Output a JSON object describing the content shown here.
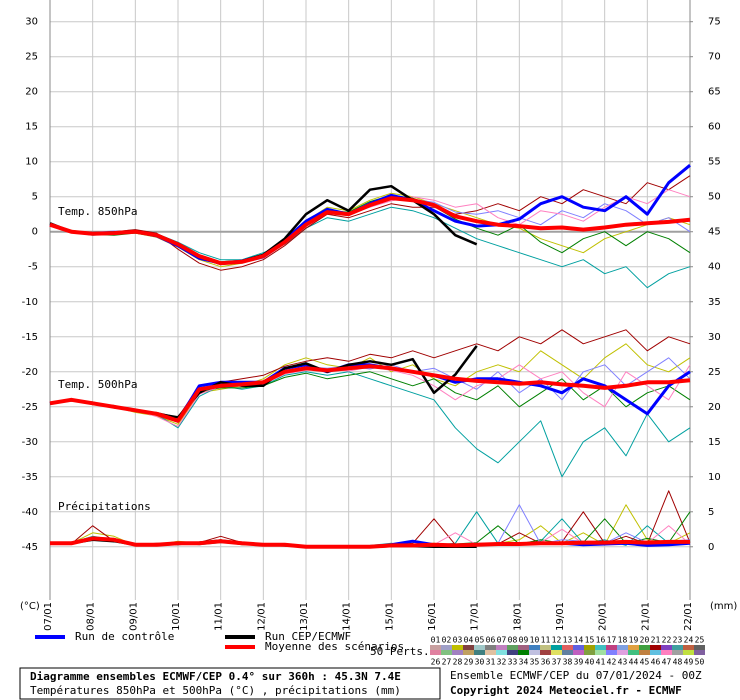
{
  "chart_data": {
    "type": "line",
    "panel_labels": [
      "Temp. 850hPa",
      "Temp. 500hPa",
      "Précipitations"
    ],
    "ylabel": "(°C)",
    "y2label": "(mm)",
    "x": [
      0,
      0.5,
      1,
      1.5,
      2,
      2.5,
      3,
      3.5,
      4,
      4.5,
      5,
      5.5,
      6,
      6.5,
      7,
      7.5,
      8,
      8.5,
      9,
      9.5,
      10,
      10.5,
      11,
      11.5,
      12,
      12.5,
      13,
      13.5,
      14,
      14.5,
      15
    ],
    "xlim": [
      0,
      15
    ],
    "xticks": [
      {
        "value": 0,
        "label": "07/01"
      },
      {
        "value": 1,
        "label": "08/01"
      },
      {
        "value": 2,
        "label": "09/01"
      },
      {
        "value": 3,
        "label": "10/01"
      },
      {
        "value": 4,
        "label": "11/01"
      },
      {
        "value": 5,
        "label": "12/01"
      },
      {
        "value": 6,
        "label": "13/01"
      },
      {
        "value": 7,
        "label": "14/01"
      },
      {
        "value": 8,
        "label": "15/01"
      },
      {
        "value": 9,
        "label": "16/01"
      },
      {
        "value": 10,
        "label": "17/01"
      },
      {
        "value": 11,
        "label": "18/01"
      },
      {
        "value": 12,
        "label": "19/01"
      },
      {
        "value": 13,
        "label": "20/01"
      },
      {
        "value": 14,
        "label": "21/01"
      },
      {
        "value": 15,
        "label": "22/01"
      }
    ],
    "ylim": [
      -52.6,
      33.1
    ],
    "yticks": [
      -45,
      -40,
      -35,
      -30,
      -25,
      -20,
      -15,
      -10,
      -5,
      0,
      5,
      10,
      15,
      20,
      25,
      30
    ],
    "y2lim": [
      -7.6,
      78.1
    ],
    "y2ticks": [
      0,
      5,
      10,
      15,
      20,
      25,
      30,
      35,
      40,
      45,
      50,
      55,
      60,
      65,
      70,
      75
    ],
    "grid": true,
    "perturbations": {
      "label": "50 Perts.",
      "names": [
        "01",
        "02",
        "03",
        "04",
        "05",
        "06",
        "07",
        "08",
        "09",
        "10",
        "11",
        "12",
        "13",
        "14",
        "15",
        "16",
        "17",
        "18",
        "19",
        "20",
        "21",
        "22",
        "23",
        "24",
        "25",
        "26",
        "27",
        "28",
        "29",
        "30",
        "31",
        "32",
        "33",
        "34",
        "35",
        "36",
        "37",
        "38",
        "39",
        "40",
        "41",
        "42",
        "43",
        "44",
        "45",
        "46",
        "47",
        "48",
        "49",
        "50"
      ],
      "colors": [
        "#c8a0a0",
        "#a0a0c8",
        "#c0c000",
        "#804040",
        "#a0c8c8",
        "#808080",
        "#c080c0",
        "#60a060",
        "#a06080",
        "#4080c0",
        "#c0c080",
        "#00a0a0",
        "#e06060",
        "#6060e0",
        "#a0a000",
        "#40c0c0",
        "#c04080",
        "#80a0e0",
        "#e0a040",
        "#40a040",
        "#a00000",
        "#8040c0",
        "#40a0a0",
        "#c06040",
        "#606060",
        "#e080a0",
        "#80c080",
        "#a080c0",
        "#c0a060",
        "#408080",
        "#e0c0a0",
        "#80e0e0",
        "#404080",
        "#008000",
        "#c0c0e0",
        "#a04040",
        "#e0e060",
        "#6080a0",
        "#c060c0",
        "#80a040",
        "#a0e0a0",
        "#8080ff",
        "#e0a0e0",
        "#40c080",
        "#c08040",
        "#60c0e0",
        "#ff80c0",
        "#a0a0a0",
        "#c0e040",
        "#8060a0"
      ]
    },
    "series": [
      {
        "name": "03",
        "color": "#c0c000",
        "values": [
          1,
          0.2,
          -0.2,
          0,
          -0.2,
          -0.8,
          -2.2,
          -4,
          -5,
          -4.5,
          -3.5,
          -1,
          1.5,
          3.5,
          3,
          4.5,
          5.5,
          5,
          4,
          3,
          2,
          1,
          0.5,
          -1,
          -2,
          -3,
          -1,
          0,
          1,
          2,
          1
        ]
      },
      {
        "name": "12",
        "color": "#00a0a0",
        "values": [
          1,
          -0.1,
          -0.5,
          -0.3,
          0.2,
          -0.3,
          -1.5,
          -3,
          -4,
          -4,
          -3,
          -1.8,
          0.5,
          2,
          1.5,
          2.5,
          3.5,
          3,
          2,
          0.5,
          -1,
          -2,
          -3,
          -4,
          -5,
          -4,
          -6,
          -5,
          -8,
          -6,
          -5
        ]
      },
      {
        "name": "21",
        "color": "#a00000",
        "values": [
          1,
          0,
          -0.2,
          0,
          0.3,
          -0.2,
          -2.5,
          -4.5,
          -5.5,
          -5,
          -4,
          -2,
          0.5,
          2.5,
          2,
          3,
          4,
          3.5,
          3.5,
          2.5,
          3,
          4,
          3,
          5,
          4,
          6,
          5,
          4,
          7,
          6,
          8
        ]
      },
      {
        "name": "34",
        "color": "#008000",
        "values": [
          1,
          0.1,
          -0.4,
          -0.5,
          -0.2,
          -0.7,
          -1.8,
          -3.3,
          -4.3,
          -4.1,
          -3.2,
          -1.3,
          1.2,
          3,
          2.8,
          4.3,
          5.2,
          4.8,
          3.6,
          1.8,
          0.5,
          -0.5,
          1,
          -1.5,
          -3,
          -1,
          0,
          -2,
          0,
          -1,
          -3
        ]
      },
      {
        "name": "42",
        "color": "#8080ff",
        "values": [
          1,
          0,
          -0.1,
          0.1,
          0,
          -0.4,
          -1.6,
          -3.4,
          -4.4,
          -4.4,
          -3.8,
          -1.7,
          0.8,
          2.6,
          2.7,
          4,
          5,
          4.6,
          4.2,
          2.8,
          2.5,
          3,
          2,
          1,
          3,
          2,
          4,
          3,
          1,
          2,
          0
        ]
      },
      {
        "name": "47",
        "color": "#ff80c0",
        "values": [
          1,
          0,
          -0.3,
          -0.1,
          -0.1,
          -0.6,
          -1.9,
          -3.7,
          -4.7,
          -4.3,
          -3.6,
          -1.4,
          1,
          3.1,
          2.4,
          3.5,
          4.4,
          5,
          4.5,
          3.5,
          4,
          2,
          1,
          3,
          2.5,
          1.5,
          3.5,
          5,
          4,
          6,
          5
        ]
      },
      {
        "name": "03",
        "color": "#c0c000",
        "values": [
          -24.5,
          -24,
          -24.7,
          -25,
          -25.8,
          -26.3,
          -27.5,
          -23,
          -22.5,
          -22,
          -21,
          -19,
          -18,
          -19,
          -19.5,
          -18,
          -20,
          -19,
          -21,
          -22,
          -20,
          -19,
          -20,
          -17,
          -19,
          -21,
          -18,
          -16,
          -19,
          -20,
          -18
        ]
      },
      {
        "name": "12",
        "color": "#00a0a0",
        "values": [
          -24.5,
          -24.2,
          -24.4,
          -25.2,
          -25.3,
          -26.1,
          -28,
          -23.5,
          -22,
          -22.5,
          -22,
          -20.5,
          -20,
          -20.5,
          -20,
          -21,
          -22,
          -23,
          -24,
          -28,
          -31,
          -33,
          -30,
          -27,
          -35,
          -30,
          -28,
          -32,
          -26,
          -30,
          -28
        ]
      },
      {
        "name": "21",
        "color": "#a00000",
        "values": [
          -24.5,
          -24,
          -24.6,
          -24.8,
          -25.6,
          -25.8,
          -26.5,
          -22,
          -21.5,
          -21,
          -20.5,
          -19.2,
          -18.5,
          -18,
          -18.5,
          -17.5,
          -18,
          -17,
          -18,
          -17,
          -16,
          -17,
          -15,
          -16,
          -14,
          -16,
          -15,
          -14,
          -17,
          -15,
          -16
        ]
      },
      {
        "name": "34",
        "color": "#008000",
        "values": [
          -24.5,
          -24.1,
          -24.3,
          -25.1,
          -25.4,
          -26.2,
          -27.2,
          -22.8,
          -22.3,
          -22.3,
          -22,
          -20.8,
          -20.2,
          -21,
          -20.5,
          -20,
          -21,
          -22,
          -21,
          -23,
          -24,
          -22,
          -25,
          -23,
          -21,
          -24,
          -22,
          -25,
          -23,
          -22,
          -24
        ]
      },
      {
        "name": "42",
        "color": "#8080ff",
        "values": [
          -24.5,
          -24,
          -24.5,
          -24.9,
          -25.7,
          -26,
          -26.8,
          -22.3,
          -21.7,
          -21.6,
          -21.3,
          -19.8,
          -19.3,
          -19.5,
          -19.2,
          -19.6,
          -19,
          -20,
          -19.5,
          -21,
          -22.5,
          -20,
          -23,
          -21,
          -24,
          -20,
          -19,
          -22,
          -20,
          -18,
          -21
        ]
      },
      {
        "name": "47",
        "color": "#ff80c0",
        "values": [
          -24.5,
          -23.9,
          -24.6,
          -25,
          -25.5,
          -26.4,
          -27.8,
          -23.2,
          -22.1,
          -21.9,
          -21.8,
          -20.3,
          -19.8,
          -19.6,
          -19.9,
          -19.3,
          -19.8,
          -20.5,
          -22,
          -24,
          -22,
          -21,
          -19,
          -21,
          -20,
          -23,
          -25,
          -20,
          -22,
          -24,
          -19
        ]
      },
      {
        "name": "03",
        "color": "#c0c000",
        "axis": "y2",
        "values": [
          0.5,
          0.5,
          2,
          1.5,
          0.2,
          0.3,
          0.8,
          0.5,
          1,
          0.5,
          0.2,
          0.3,
          0,
          0,
          0,
          0,
          0.1,
          0.3,
          0.5,
          0.2,
          0.1,
          0.5,
          1,
          3,
          0.5,
          2,
          0.3,
          6,
          1,
          0.5,
          2
        ]
      },
      {
        "name": "12",
        "color": "#00a0a0",
        "axis": "y2",
        "values": [
          0.5,
          0.6,
          1.5,
          1,
          0.4,
          0.2,
          0.6,
          0.3,
          0.6,
          0.4,
          0.3,
          0.1,
          0,
          0,
          0,
          0.2,
          0.5,
          0.1,
          0.2,
          0.5,
          5,
          0.5,
          0.3,
          0.8,
          4,
          0.5,
          1,
          0.2,
          3,
          0.5,
          1
        ]
      },
      {
        "name": "21",
        "color": "#a00000",
        "axis": "y2",
        "values": [
          0.5,
          0.4,
          3,
          0.8,
          0.3,
          0.5,
          0.4,
          0.6,
          1.5,
          0.6,
          0.4,
          0.2,
          0,
          0,
          0.1,
          0,
          0.2,
          0.5,
          4,
          0.3,
          0.2,
          0.4,
          2,
          0.5,
          0.7,
          5,
          0.5,
          1.5,
          0.4,
          8,
          0.6
        ]
      },
      {
        "name": "34",
        "color": "#008000",
        "axis": "y2",
        "values": [
          0.5,
          0.5,
          1,
          1.2,
          0.3,
          0.4,
          0.5,
          0.4,
          0.7,
          0.3,
          0.3,
          0.2,
          0,
          0,
          0,
          0.1,
          0.2,
          0.2,
          0.3,
          0.4,
          0.6,
          3,
          0.4,
          1,
          0.5,
          0.6,
          4,
          0.5,
          1.2,
          0.6,
          5
        ]
      },
      {
        "name": "42",
        "color": "#8080ff",
        "axis": "y2",
        "values": [
          0.5,
          0.7,
          1.3,
          0.9,
          0.2,
          0.3,
          0.6,
          0.5,
          0.9,
          0.6,
          0.2,
          0.4,
          0,
          0,
          0,
          0,
          0.1,
          0.4,
          0.2,
          0.3,
          0.5,
          0.5,
          6,
          0.4,
          1,
          0.8,
          0.5,
          2,
          0.6,
          0.8,
          1
        ]
      },
      {
        "name": "47",
        "color": "#ff80c0",
        "axis": "y2",
        "values": [
          0.5,
          0.5,
          1.1,
          1.1,
          0.3,
          0.3,
          0.5,
          0.5,
          0.8,
          0.5,
          0.3,
          0.3,
          0,
          0,
          0,
          0,
          0.2,
          0.2,
          0.3,
          2,
          0.3,
          0.5,
          0.5,
          0.6,
          2.5,
          0.5,
          0.7,
          0.6,
          0.5,
          3,
          0.4
        ]
      },
      {
        "name": "Run de contrôle",
        "color": "#0000ff",
        "values": [
          1,
          0,
          -0.3,
          -0.2,
          0,
          -0.6,
          -2,
          -3.8,
          -4.5,
          -4.2,
          -3.4,
          -1.2,
          1.5,
          3.2,
          2.5,
          4,
          5.2,
          4.5,
          3,
          1.5,
          0.8,
          1,
          1.8,
          4,
          5,
          3.5,
          3,
          5,
          2.5,
          7,
          9.5
        ]
      },
      {
        "name": "Run de contrôle",
        "color": "#0000ff",
        "values": [
          -24.5,
          -24,
          -24.5,
          -25,
          -25.5,
          -26,
          -27,
          -22,
          -21.5,
          -21.5,
          -21.5,
          -19.5,
          -19,
          -20,
          -19,
          -19,
          -19.5,
          -20,
          -20.5,
          -21.5,
          -21,
          -21,
          -21.5,
          -22,
          -23,
          -21,
          -22,
          -24,
          -26,
          -22,
          -20
        ]
      },
      {
        "name": "Run de contrôle",
        "color": "#0000ff",
        "axis": "y2",
        "values": [
          0.5,
          0.5,
          1.2,
          1,
          0.3,
          0.3,
          0.5,
          0.5,
          0.8,
          0.5,
          0.3,
          0.3,
          0,
          0,
          0,
          0,
          0.3,
          0.8,
          0.3,
          0.2,
          0.3,
          0.4,
          0.4,
          0.5,
          0.5,
          0.3,
          0.4,
          0.5,
          0.2,
          0.3,
          0.5
        ]
      },
      {
        "name": "Run CEP/ECMWF",
        "color": "#000000",
        "values": [
          1.2,
          0,
          -0.2,
          -0.1,
          0.1,
          -0.4,
          -1.7,
          -3.6,
          -4.6,
          -4.2,
          -3.3,
          -1,
          2.5,
          4.5,
          3,
          6,
          6.5,
          4.5,
          2.5,
          -0.5,
          -1.8,
          null,
          null,
          null,
          null,
          null,
          null,
          null,
          null,
          null,
          null
        ]
      },
      {
        "name": "Run CEP/ECMWF",
        "color": "#000000",
        "values": [
          -24.5,
          -24,
          -24.5,
          -25,
          -25.5,
          -26,
          -26.5,
          -23,
          -21.5,
          -22,
          -22,
          -19.5,
          -18.8,
          -20,
          -19,
          -18.5,
          -19,
          -18.2,
          -23,
          -20.4,
          -16.3,
          null,
          null,
          null,
          null,
          null,
          null,
          null,
          null,
          null,
          null
        ]
      },
      {
        "name": "Run CEP/ECMWF",
        "color": "#000000",
        "axis": "y2",
        "values": [
          0.5,
          0.5,
          1,
          0.8,
          0.3,
          0.3,
          0.4,
          0.6,
          0.9,
          0.5,
          0.3,
          0.2,
          0,
          0,
          0,
          0,
          0.1,
          0.1,
          0,
          0,
          0,
          null,
          null,
          null,
          null,
          null,
          null,
          null,
          null,
          null,
          null
        ]
      },
      {
        "name": "Moyenne des scénarios",
        "color": "#ff0000",
        "values": [
          1,
          0,
          -0.3,
          -0.2,
          0,
          -0.5,
          -1.8,
          -3.5,
          -4.5,
          -4.3,
          -3.5,
          -1.5,
          1,
          2.8,
          2.5,
          3.8,
          4.8,
          4.5,
          3.8,
          2.2,
          1.5,
          1,
          0.8,
          0.5,
          0.6,
          0.3,
          0.6,
          1,
          1.2,
          1.4,
          1.7
        ]
      },
      {
        "name": "Moyenne des scénarios",
        "color": "#ff0000",
        "values": [
          -24.5,
          -24,
          -24.5,
          -25,
          -25.5,
          -26,
          -27,
          -22.5,
          -22,
          -21.8,
          -21.5,
          -20,
          -19.5,
          -19.8,
          -19.5,
          -19.2,
          -19.5,
          -20,
          -20.5,
          -21,
          -21.3,
          -21.5,
          -21.7,
          -21.5,
          -21.8,
          -22,
          -22.3,
          -22,
          -21.5,
          -21.5,
          -21.2
        ]
      },
      {
        "name": "Moyenne des scénarios",
        "color": "#ff0000",
        "axis": "y2",
        "values": [
          0.5,
          0.5,
          1.2,
          1,
          0.3,
          0.3,
          0.5,
          0.5,
          0.8,
          0.5,
          0.3,
          0.3,
          0,
          0,
          0,
          0,
          0.2,
          0.2,
          0.3,
          0.2,
          0.3,
          0.4,
          0.4,
          0.5,
          0.5,
          0.6,
          0.6,
          0.7,
          0.6,
          0.7,
          0.7
        ]
      }
    ],
    "footer": {
      "title": "Diagramme ensembles ECMWF/CEP 0.4° sur 360h : 45.3N 7.4E",
      "subtitle": "Températures 850hPa et 500hPa (°C) , précipitations (mm)",
      "run": "Ensemble ECMWF/CEP du 07/01/2024 - 00Z",
      "copyright": "Copyright 2024 Meteociel.fr - ECMWF"
    }
  }
}
